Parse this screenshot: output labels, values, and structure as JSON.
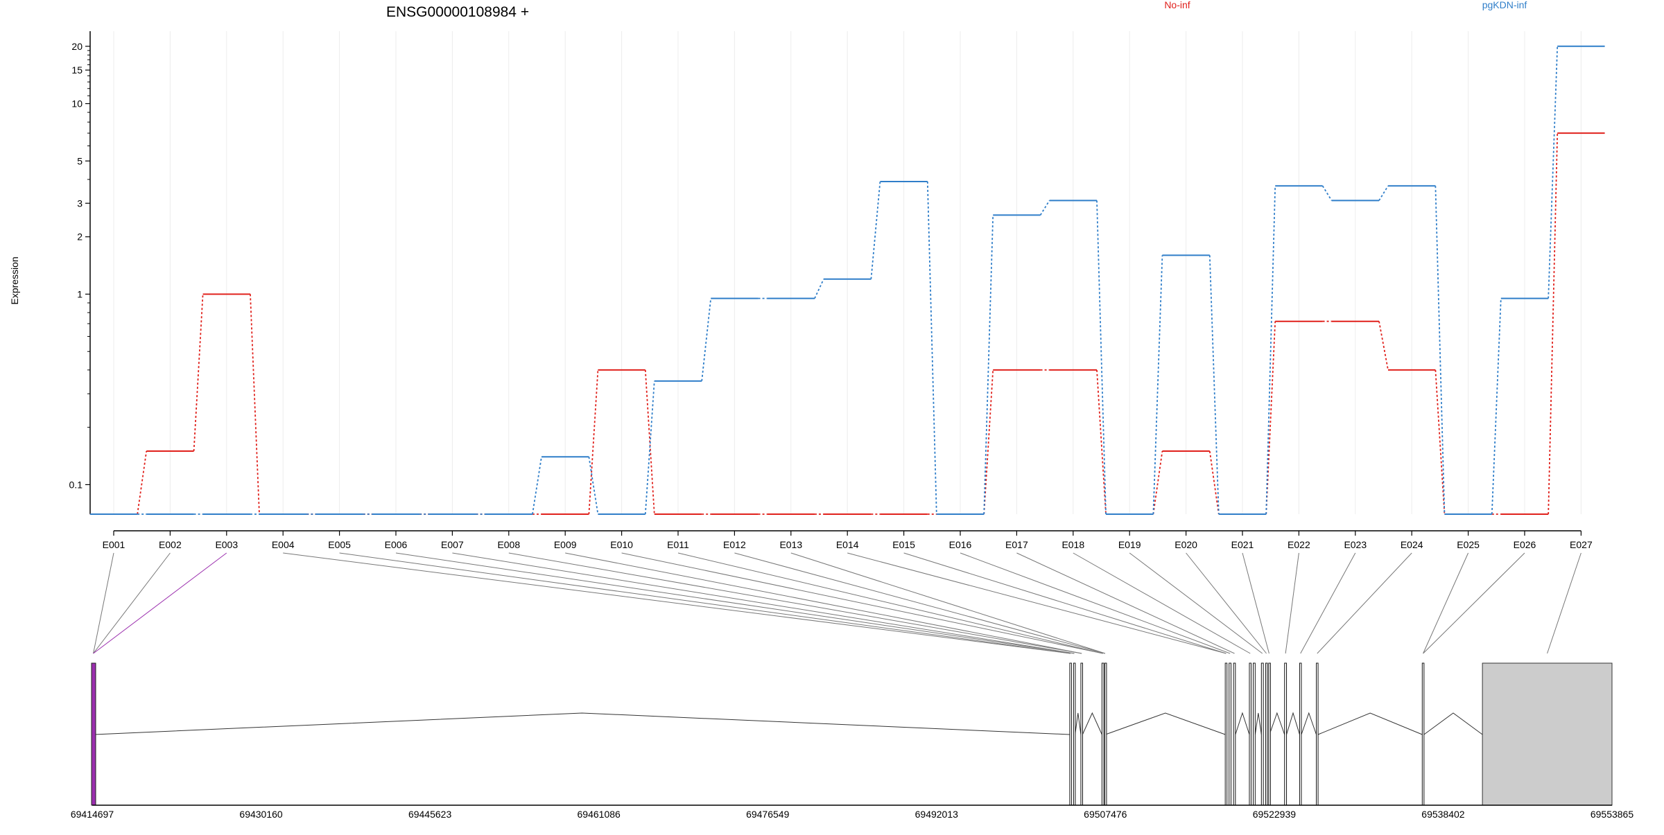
{
  "chart_data": {
    "type": "line",
    "title": "ENSG00000108984 +",
    "ylabel": "Expression",
    "xlabel": "",
    "y_scale": "log",
    "yticks": [
      {
        "value": 0.1,
        "label": "0.1"
      },
      {
        "value": 1,
        "label": "1"
      },
      {
        "value": 2,
        "label": "2"
      },
      {
        "value": 3,
        "label": "3"
      },
      {
        "value": 5,
        "label": "5"
      },
      {
        "value": 10,
        "label": "10"
      },
      {
        "value": 15,
        "label": "15"
      },
      {
        "value": 20,
        "label": "20"
      }
    ],
    "ylim": [
      0.07,
      24
    ],
    "legend_placement": "top-right",
    "colors": {
      "No-inf": "#e0201b",
      "pgKDN-inf": "#2f7ec9",
      "highlight": "#9b2fae"
    },
    "categories": [
      "E001",
      "E002",
      "E003",
      "E004",
      "E005",
      "E006",
      "E007",
      "E008",
      "E009",
      "E010",
      "E011",
      "E012",
      "E013",
      "E014",
      "E015",
      "E016",
      "E017",
      "E018",
      "E019",
      "E020",
      "E021",
      "E022",
      "E023",
      "E024",
      "E025",
      "E026",
      "E027"
    ],
    "series": [
      {
        "name": "No-inf",
        "color": "#e0201b",
        "values": [
          0.07,
          0.15,
          1.0,
          0.07,
          0.07,
          0.07,
          0.07,
          0.07,
          0.07,
          0.4,
          0.07,
          0.07,
          0.07,
          0.07,
          0.07,
          0.07,
          0.4,
          0.4,
          0.07,
          0.15,
          0.07,
          0.72,
          0.72,
          0.4,
          0.07,
          0.07,
          7.0
        ]
      },
      {
        "name": "pgKDN-inf",
        "color": "#2f7ec9",
        "values": [
          0.07,
          0.07,
          0.07,
          0.07,
          0.07,
          0.07,
          0.07,
          0.07,
          0.14,
          0.07,
          0.35,
          0.95,
          0.95,
          1.2,
          3.9,
          0.07,
          2.6,
          3.1,
          0.07,
          1.6,
          0.07,
          3.7,
          3.1,
          3.7,
          0.07,
          0.95,
          20.0
        ]
      }
    ],
    "genome": {
      "ticks": [
        "69414697",
        "69430160",
        "69445623",
        "69461086",
        "69476549",
        "69492013",
        "69507476",
        "69522939",
        "69538402",
        "69553865"
      ],
      "start": 69414697,
      "end": 69553865,
      "exons": [
        [
          69414697,
          69414897
        ],
        [
          69504210,
          69504340
        ],
        [
          69504560,
          69504700
        ],
        [
          69505230,
          69505380
        ],
        [
          69507160,
          69507330
        ],
        [
          69507420,
          69507480
        ],
        [
          69518450,
          69518600
        ],
        [
          69518800,
          69518980
        ],
        [
          69519210,
          69519380
        ],
        [
          69520660,
          69520820
        ],
        [
          69521010,
          69521190
        ],
        [
          69521760,
          69521940
        ],
        [
          69522150,
          69522290
        ],
        [
          69522430,
          69522500
        ],
        [
          69523880,
          69524060
        ],
        [
          69525260,
          69525420
        ],
        [
          69526790,
          69526950
        ],
        [
          69536490,
          69536650
        ],
        [
          69542000,
          69553865
        ]
      ],
      "gray_exon": 18,
      "bin_targets": [
        0,
        0,
        0,
        1,
        1,
        2,
        2,
        3,
        3,
        4,
        4,
        5,
        5,
        6,
        6,
        7,
        8,
        9,
        11,
        12,
        13,
        14,
        15,
        16,
        17,
        17,
        18
      ]
    }
  }
}
